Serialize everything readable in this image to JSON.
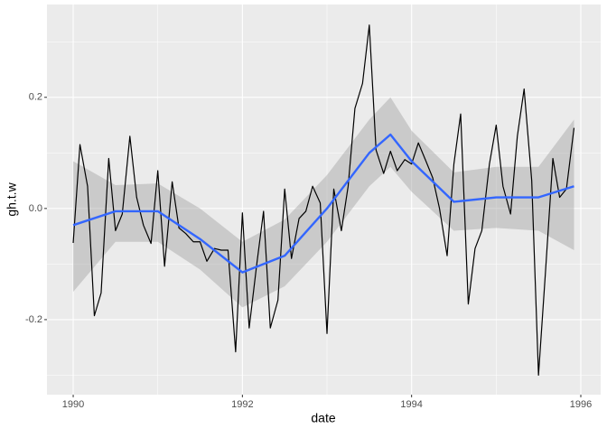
{
  "chart_data": {
    "type": "line",
    "x_label": "date",
    "y_label": "gh.t.w",
    "xlim": [
      1989.69,
      1996.235
    ],
    "ylim": [
      -0.335,
      0.367
    ],
    "xticks": [
      1990,
      1992,
      1994,
      1996
    ],
    "yticks": [
      -0.2,
      {
        "value": 0,
        "label": "0.0"
      },
      0.2
    ],
    "minor_xticks": [
      1991,
      1993,
      1995
    ],
    "minor_yticks": [
      -0.3,
      -0.1,
      0.1,
      0.3
    ],
    "grid": true,
    "series": [
      {
        "color": "#000000",
        "x": [
          1990,
          1990.08,
          1990.17,
          1990.25,
          1990.33,
          1990.42,
          1990.5,
          1990.58,
          1990.67,
          1990.75,
          1990.83,
          1990.92,
          1991,
          1991.08,
          1991.17,
          1991.25,
          1991.33,
          1991.42,
          1991.5,
          1991.58,
          1991.67,
          1991.75,
          1991.83,
          1991.92,
          1992,
          1992.08,
          1992.17,
          1992.25,
          1992.33,
          1992.42,
          1992.5,
          1992.58,
          1992.67,
          1992.75,
          1992.83,
          1992.92,
          1993,
          1993.08,
          1993.17,
          1993.25,
          1993.33,
          1993.42,
          1993.5,
          1993.58,
          1993.67,
          1993.75,
          1993.83,
          1993.92,
          1994,
          1994.08,
          1994.17,
          1994.25,
          1994.33,
          1994.42,
          1994.5,
          1994.58,
          1994.67,
          1994.75,
          1994.83,
          1994.92,
          1995,
          1995.08,
          1995.17,
          1995.25,
          1995.33,
          1995.42,
          1995.5,
          1995.58,
          1995.67,
          1995.75,
          1995.83,
          1995.92
        ],
        "values": [
          -0.062,
          0.115,
          0.04,
          -0.193,
          -0.152,
          0.09,
          -0.04,
          -0.01,
          0.13,
          0.02,
          -0.03,
          -0.063,
          0.068,
          -0.104,
          0.048,
          -0.035,
          -0.045,
          -0.06,
          -0.06,
          -0.095,
          -0.072,
          -0.075,
          -0.075,
          -0.258,
          -0.008,
          -0.215,
          -0.1,
          -0.005,
          -0.215,
          -0.165,
          0.035,
          -0.09,
          -0.018,
          -0.005,
          0.04,
          0.01,
          -0.225,
          0.035,
          -0.04,
          0.04,
          0.18,
          0.225,
          0.33,
          0.105,
          0.063,
          0.103,
          0.068,
          0.088,
          0.08,
          0.118,
          0.085,
          0.055,
          0.0,
          -0.085,
          0.08,
          0.17,
          -0.172,
          -0.072,
          -0.04,
          0.08,
          0.15,
          0.04,
          -0.01,
          0.13,
          0.215,
          0.05,
          -0.3,
          -0.12,
          0.09,
          0.02,
          0.035,
          0.145
        ]
      },
      {
        "color": "#3366ff",
        "x": [
          1990,
          1990.5,
          1991,
          1991.5,
          1992,
          1992.5,
          1993,
          1993.5,
          1993.75,
          1994,
          1994.5,
          1995,
          1995.5,
          1995.92
        ],
        "values": [
          -0.03,
          -0.005,
          -0.005,
          -0.055,
          -0.115,
          -0.085,
          0.0,
          0.1,
          0.133,
          0.085,
          0.012,
          0.02,
          0.02,
          0.04
        ]
      }
    ],
    "band": {
      "color": "#999999",
      "x": [
        1990,
        1990.5,
        1991,
        1991.5,
        1992,
        1992.5,
        1993,
        1993.5,
        1993.75,
        1994,
        1994.5,
        1995,
        1995.5,
        1995.92
      ],
      "lower": [
        -0.15,
        -0.06,
        -0.06,
        -0.11,
        -0.178,
        -0.14,
        -0.06,
        0.04,
        0.075,
        0.03,
        -0.04,
        -0.035,
        -0.04,
        -0.075
      ],
      "upper": [
        0.085,
        0.042,
        0.045,
        0.0,
        -0.06,
        -0.02,
        0.06,
        0.16,
        0.2,
        0.14,
        0.065,
        0.075,
        0.075,
        0.16
      ]
    }
  }
}
